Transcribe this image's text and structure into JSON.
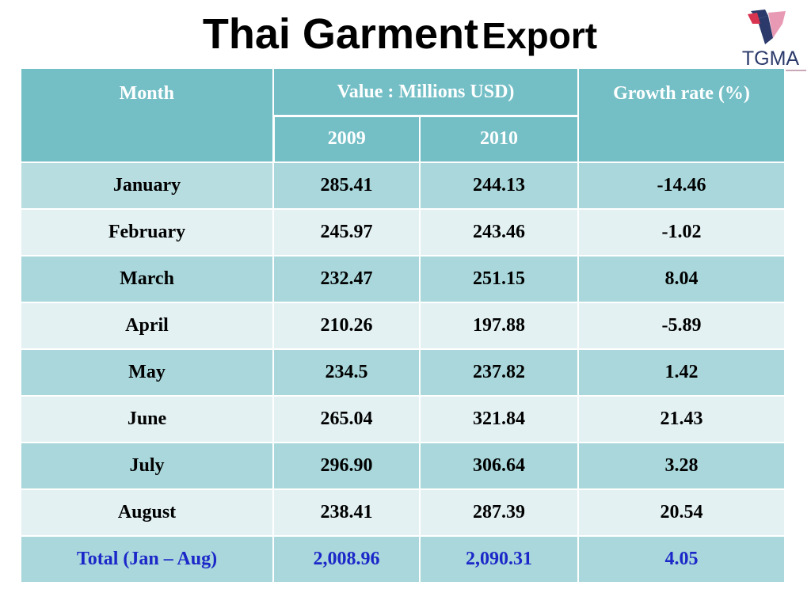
{
  "title": {
    "part1": "Thai Garment",
    "part2": "Export"
  },
  "logo": {
    "text": "TGMA",
    "colors": {
      "red": "#d9344f",
      "navy": "#2b3a6b",
      "pink": "#e89ab4"
    }
  },
  "table": {
    "header": {
      "month": "Month",
      "value": "Value : Millions USD)",
      "growth": "Growth  rate (%)",
      "year1": "2009",
      "year2": "2010"
    },
    "rows": [
      {
        "month": "January",
        "v2009": "285.41",
        "v2010": "244.13",
        "growth": "-14.46"
      },
      {
        "month": "February",
        "v2009": "245.97",
        "v2010": "243.46",
        "growth": "-1.02"
      },
      {
        "month": "March",
        "v2009": "232.47",
        "v2010": "251.15",
        "growth": "8.04"
      },
      {
        "month": "April",
        "v2009": "210.26",
        "v2010": "197.88",
        "growth": "-5.89"
      },
      {
        "month": "May",
        "v2009": "234.5",
        "v2010": "237.82",
        "growth": "1.42"
      },
      {
        "month": "June",
        "v2009": "265.04",
        "v2010": "321.84",
        "growth": "21.43"
      },
      {
        "month": "July",
        "v2009": "296.90",
        "v2010": "306.64",
        "growth": "3.28"
      },
      {
        "month": "August",
        "v2009": "238.41",
        "v2010": "287.39",
        "growth": "20.54"
      }
    ],
    "total": {
      "month": "Total  (Jan – Aug)",
      "v2009": "2,008.96",
      "v2010": "2,090.31",
      "growth": "4.05"
    }
  },
  "colors": {
    "header": "#74bfc6",
    "row_dark": "#a9d7db",
    "row_light": "#e3f1f3",
    "total_text": "#1b27c9"
  }
}
